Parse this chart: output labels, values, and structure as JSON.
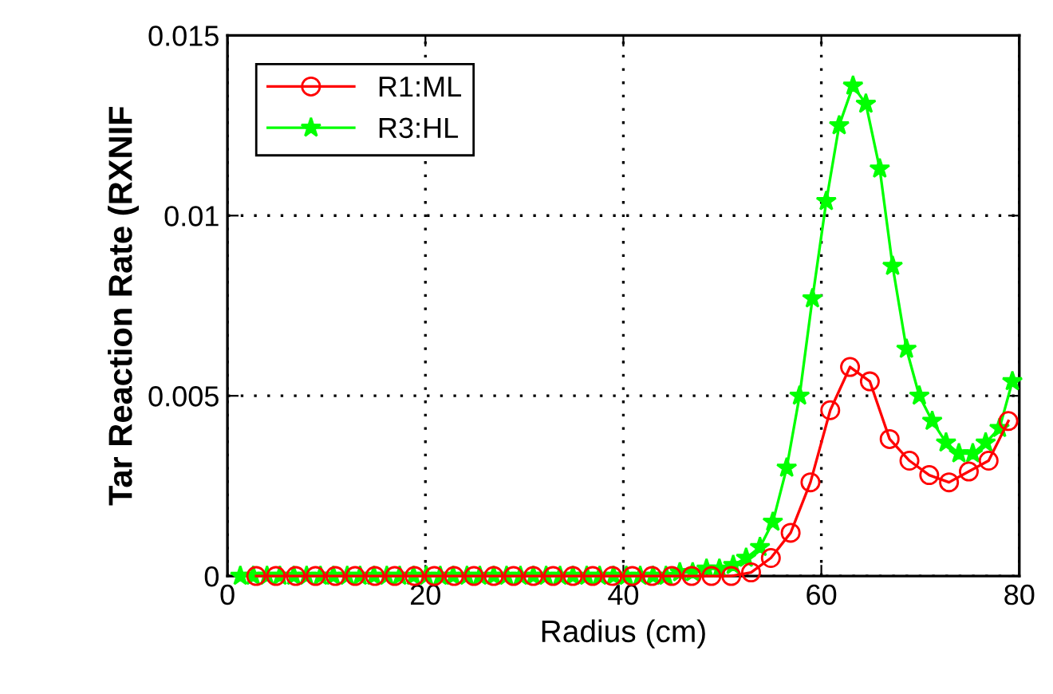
{
  "chart_data": {
    "type": "line",
    "xlabel": "Radius (cm)",
    "ylabel": "Tar Reaction Rate (RXNIF",
    "xlim": [
      0,
      80
    ],
    "xticks": [
      0,
      20,
      40,
      60,
      80
    ],
    "ylim": [
      0,
      0.015
    ],
    "yticks": [
      0,
      0.005,
      0.01,
      0.015
    ],
    "grid": true,
    "legend": "top left",
    "line_style": "solid",
    "series": [
      {
        "name": "R1:ML",
        "color": "#ff0000",
        "marker": "circle",
        "x": [
          2.9,
          4.9,
          6.9,
          8.9,
          10.9,
          12.9,
          14.9,
          16.9,
          18.9,
          20.9,
          22.9,
          24.9,
          26.9,
          28.9,
          30.9,
          32.9,
          34.9,
          36.9,
          38.9,
          40.9,
          42.9,
          44.9,
          46.9,
          48.9,
          50.9,
          52.9,
          54.9,
          56.9,
          58.9,
          60.9,
          62.9,
          64.9,
          66.9,
          68.9,
          70.9,
          72.9,
          74.9,
          76.9,
          78.9
        ],
        "values": [
          0,
          0,
          0,
          0,
          0,
          0,
          0,
          0,
          0,
          0,
          0,
          0,
          0,
          0,
          0,
          0,
          0,
          0,
          0,
          0,
          0,
          0,
          0,
          0,
          0,
          0.0001,
          0.0005,
          0.0012,
          0.0026,
          0.0046,
          0.0058,
          0.0054,
          0.0038,
          0.0032,
          0.0028,
          0.0026,
          0.0029,
          0.0032,
          0.0043
        ]
      },
      {
        "name": "R3:HL",
        "color": "#00ff00",
        "marker": "star",
        "x": [
          1.3,
          2.6,
          4.0,
          5.3,
          6.7,
          8.0,
          9.4,
          10.7,
          12.1,
          13.4,
          14.8,
          16.1,
          17.4,
          18.8,
          20.1,
          21.5,
          22.8,
          24.2,
          25.5,
          26.9,
          28.2,
          29.6,
          30.9,
          32.2,
          33.6,
          34.9,
          36.3,
          37.6,
          39.0,
          40.3,
          41.7,
          43.0,
          44.3,
          45.7,
          47.0,
          48.4,
          49.7,
          51.1,
          52.4,
          53.8,
          55.1,
          56.5,
          57.8,
          59.1,
          60.5,
          61.8,
          63.2,
          64.5,
          65.9,
          67.2,
          68.6,
          69.9,
          71.2,
          72.6,
          73.9,
          75.3,
          76.6,
          78.0,
          79.3
        ],
        "values": [
          0,
          0,
          0,
          0,
          0,
          0,
          0,
          0,
          0,
          0,
          0,
          0,
          0,
          0,
          0,
          0,
          0,
          0,
          0,
          0,
          0,
          0,
          0,
          0,
          0,
          0,
          0,
          0,
          0,
          0,
          0,
          0,
          0,
          0.0001,
          0.0001,
          0.0002,
          0.0002,
          0.0003,
          0.0005,
          0.0008,
          0.0015,
          0.003,
          0.005,
          0.0077,
          0.0104,
          0.0125,
          0.0136,
          0.0131,
          0.0113,
          0.0086,
          0.0063,
          0.005,
          0.0043,
          0.0037,
          0.0034,
          0.0034,
          0.0037,
          0.0041,
          0.0054
        ]
      }
    ]
  }
}
